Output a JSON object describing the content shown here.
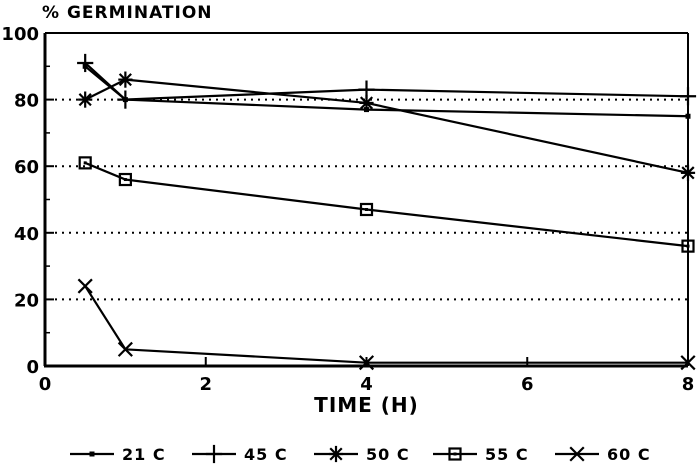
{
  "page": {
    "background": "#ffffff",
    "ink": "#000000"
  },
  "chart_data": {
    "type": "line",
    "title": "% GERMINATION",
    "xlabel": "TIME (H)",
    "ylabel": "% GERMINATION",
    "x": [
      0.5,
      1,
      4,
      8
    ],
    "xlim": [
      0,
      8
    ],
    "ylim": [
      0,
      100
    ],
    "xticks": [
      0,
      2,
      4,
      6,
      8
    ],
    "yticks": [
      0,
      20,
      40,
      60,
      80,
      100
    ],
    "y_minor_ticks": [
      10,
      30,
      50,
      70,
      90
    ],
    "gridlines_y_dotted": [
      20,
      40,
      60,
      80
    ],
    "grid": "horizontal-dotted",
    "legend_position": "bottom",
    "series": [
      {
        "name": "21 C",
        "marker": "dot",
        "color": "#000000",
        "values": [
          90,
          80,
          77,
          75
        ]
      },
      {
        "name": "45 C",
        "marker": "plus",
        "color": "#000000",
        "values": [
          91,
          80,
          83,
          81
        ]
      },
      {
        "name": "50 C",
        "marker": "asterisk",
        "color": "#000000",
        "values": [
          80,
          86,
          79,
          58
        ]
      },
      {
        "name": "55 C",
        "marker": "square",
        "color": "#000000",
        "values": [
          61,
          56,
          47,
          36
        ]
      },
      {
        "name": "60 C",
        "marker": "x",
        "color": "#000000",
        "values": [
          24,
          5,
          1,
          1
        ]
      }
    ]
  }
}
